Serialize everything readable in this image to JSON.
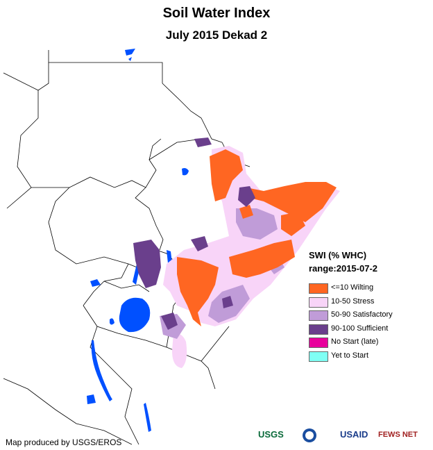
{
  "title": "Soil Water Index",
  "subtitle": "July 2015 Dekad 2",
  "legend": {
    "title": "SWI (% WHC)",
    "range": "range:2015-07-2",
    "items": [
      {
        "label": "<=10 Wilting",
        "color": "#ff6622"
      },
      {
        "label": "10-50 Stress",
        "color": "#f8d4f8"
      },
      {
        "label": "50-90 Satisfactory",
        "color": "#c09cd8"
      },
      {
        "label": "90-100 Sufficient",
        "color": "#6a3f8c"
      },
      {
        "label": "No Start (late)",
        "color": "#e8009c"
      },
      {
        "label": "Yet to Start",
        "color": "#7ffff4"
      }
    ]
  },
  "credit": "Map produced by USGS/EROS",
  "logos": {
    "usgs": "USGS",
    "usaid": "USAID",
    "fewsnet": "FEWS NET"
  },
  "colors": {
    "water": "#0050ff",
    "boundary": "#000000"
  }
}
